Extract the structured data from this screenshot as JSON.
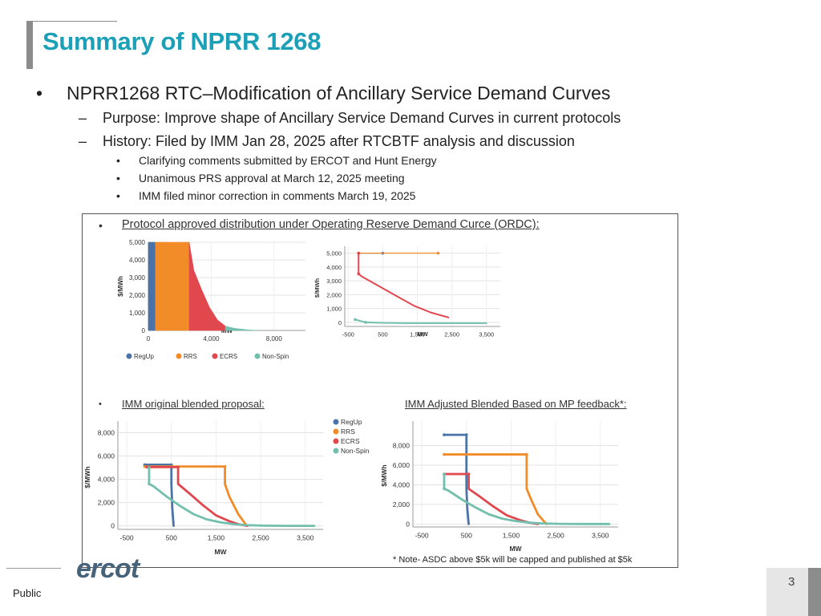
{
  "slide": {
    "title": "Summary of NPRR 1268",
    "bullet_main": "NPRR1268 RTC–Modification of Ancillary Service Demand Curves",
    "bullet_marker": "•",
    "dash_marker": "–",
    "sub_bullets": [
      "Purpose:  Improve shape of Ancillary Service Demand Curves in current protocols",
      "History: Filed by IMM Jan 28, 2025 after RTCBTF analysis and discussion"
    ],
    "sub_sub_bullets": [
      "Clarifying comments submitted by ERCOT and Hunt Energy",
      "Unanimous PRS approval at March 12, 2025 meeting",
      "IMM filed minor correction in comments March 19, 2025"
    ],
    "footer_label": "Public",
    "page_number": "3",
    "logo_text": "ercot"
  },
  "figure": {
    "top_heading": "Protocol approved distribution under Operating Reserve Demand Curce (ORDC):",
    "left_heading": "IMM original blended proposal:",
    "right_heading": "IMM Adjusted Blended Based on MP feedback*:",
    "note": "* Note- ASDC above $5k will be capped and published at $5k",
    "colors": {
      "regup": "#4a74a8",
      "rrs": "#f28c28",
      "ecrs": "#e0484e",
      "nonspin": "#72bfae"
    }
  },
  "chart_data": [
    {
      "type": "area",
      "ylabel": "$/MWh",
      "xlabel": "MW",
      "xlim": [
        0,
        10000
      ],
      "ylim": [
        0,
        5000
      ],
      "x_ticks": [
        "0",
        "4,000",
        "8,000"
      ],
      "y_ticks": [
        "0",
        "1,000",
        "2,000",
        "3,000",
        "4,000",
        "5,000"
      ],
      "legend": [
        "RegUp",
        "RRS",
        "ECRS",
        "Non-Spin"
      ],
      "series": [
        {
          "name": "RegUp",
          "x": [
            0,
            450
          ],
          "y": [
            5000,
            5000
          ]
        },
        {
          "name": "RRS",
          "x": [
            450,
            2600
          ],
          "y": [
            5000,
            5000
          ]
        },
        {
          "name": "ECRS",
          "x": [
            2600,
            2900,
            3400,
            3900,
            4400,
            4900
          ],
          "y": [
            5000,
            3400,
            2300,
            1300,
            600,
            250
          ]
        },
        {
          "name": "Non-Spin",
          "x": [
            4900,
            5500,
            6300,
            7000
          ],
          "y": [
            250,
            120,
            40,
            0
          ]
        }
      ]
    },
    {
      "type": "line",
      "ylabel": "$/MWh",
      "xlabel": "MW",
      "xlim": [
        -600,
        3900
      ],
      "ylim": [
        -300,
        5500
      ],
      "x_ticks": [
        "-500",
        "500",
        "1,500",
        "2,500",
        "3,500"
      ],
      "y_ticks": [
        "0",
        "1,000",
        "2,000",
        "3,000",
        "4,000",
        "5,000"
      ],
      "series": [
        {
          "name": "RegUp",
          "x": [
            -200,
            500
          ],
          "y": [
            5000,
            5000
          ]
        },
        {
          "name": "RRS",
          "x": [
            -200,
            2100
          ],
          "y": [
            5000,
            5000
          ]
        },
        {
          "name": "ECRS",
          "x": [
            -200,
            -200,
            -100,
            400,
            900,
            1400,
            1900,
            2400
          ],
          "y": [
            5000,
            3500,
            3300,
            2600,
            1900,
            1200,
            700,
            350
          ]
        },
        {
          "name": "Non-Spin",
          "x": [
            -300,
            0,
            500,
            1200,
            2000,
            2800,
            3500
          ],
          "y": [
            200,
            0,
            -40,
            -60,
            -60,
            -60,
            -60
          ]
        }
      ]
    },
    {
      "type": "line",
      "ylabel": "$/MWh",
      "xlabel": "MW",
      "xlim": [
        -700,
        3900
      ],
      "ylim": [
        -300,
        9000
      ],
      "x_ticks": [
        "-500",
        "500",
        "1,500",
        "2,500",
        "3,500"
      ],
      "y_ticks": [
        "0",
        "2,000",
        "4,000",
        "6,000",
        "8,000"
      ],
      "legend": [
        "RegUp",
        "RRS",
        "ECRS",
        "Non-Spin"
      ],
      "series": [
        {
          "name": "RegUp",
          "x": [
            -100,
            500,
            500,
            520,
            550
          ],
          "y": [
            5250,
            5250,
            3600,
            1500,
            0
          ]
        },
        {
          "name": "RRS",
          "x": [
            -100,
            1700,
            1700,
            1800,
            2000,
            2150,
            2200
          ],
          "y": [
            5100,
            5100,
            3600,
            2500,
            1000,
            200,
            0
          ]
        },
        {
          "name": "ECRS",
          "x": [
            -50,
            650,
            650,
            900,
            1200,
            1500,
            1800,
            2000,
            2200
          ],
          "y": [
            5050,
            5050,
            3600,
            2800,
            1800,
            900,
            400,
            150,
            0
          ]
        },
        {
          "name": "Non-Spin",
          "x": [
            0,
            0,
            100,
            400,
            700,
            1000,
            1300,
            1600,
            1900,
            2200,
            2600,
            3100,
            3700
          ],
          "y": [
            5000,
            3600,
            3400,
            2500,
            1700,
            1000,
            550,
            300,
            150,
            60,
            20,
            0,
            0
          ]
        }
      ]
    },
    {
      "type": "line",
      "ylabel": "$/MWh",
      "xlabel": "MW",
      "xlim": [
        -700,
        3900
      ],
      "ylim": [
        -300,
        10500
      ],
      "x_ticks": [
        "-500",
        "500",
        "1,500",
        "2,500",
        "3,500"
      ],
      "y_ticks": [
        "0",
        "2,000",
        "4,000",
        "6,000",
        "8,000"
      ],
      "legend": [
        "RegUp",
        "RRS",
        "ECRS",
        "Non-Spin"
      ],
      "series": [
        {
          "name": "RegUp",
          "x": [
            0,
            500,
            500,
            520,
            550
          ],
          "y": [
            9100,
            9100,
            3600,
            1500,
            0
          ]
        },
        {
          "name": "RRS",
          "x": [
            0,
            1850,
            1850,
            1950,
            2100,
            2250,
            2300
          ],
          "y": [
            7100,
            7100,
            3600,
            2500,
            1000,
            200,
            0
          ]
        },
        {
          "name": "ECRS",
          "x": [
            0,
            550,
            550,
            800,
            1100,
            1400,
            1700,
            1900,
            2100
          ],
          "y": [
            5100,
            5100,
            3600,
            2800,
            1800,
            900,
            400,
            150,
            0
          ]
        },
        {
          "name": "Non-Spin",
          "x": [
            0,
            0,
            100,
            400,
            700,
            1000,
            1300,
            1600,
            1900,
            2200,
            2600,
            3100,
            3700
          ],
          "y": [
            5100,
            3600,
            3400,
            2500,
            1700,
            1000,
            550,
            300,
            150,
            60,
            20,
            0,
            0
          ]
        }
      ]
    }
  ]
}
